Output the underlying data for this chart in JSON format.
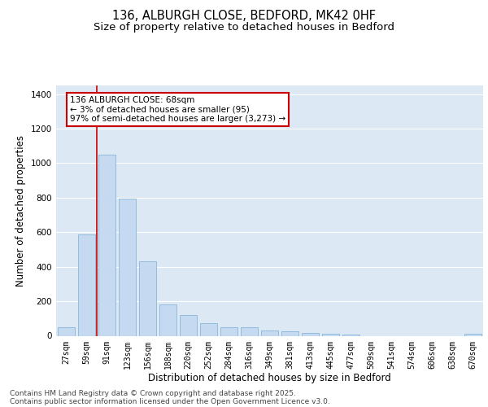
{
  "title_line1": "136, ALBURGH CLOSE, BEDFORD, MK42 0HF",
  "title_line2": "Size of property relative to detached houses in Bedford",
  "xlabel": "Distribution of detached houses by size in Bedford",
  "ylabel": "Number of detached properties",
  "categories": [
    "27sqm",
    "59sqm",
    "91sqm",
    "123sqm",
    "156sqm",
    "188sqm",
    "220sqm",
    "252sqm",
    "284sqm",
    "316sqm",
    "349sqm",
    "381sqm",
    "413sqm",
    "445sqm",
    "477sqm",
    "509sqm",
    "541sqm",
    "574sqm",
    "606sqm",
    "638sqm",
    "670sqm"
  ],
  "values": [
    50,
    585,
    1050,
    793,
    430,
    180,
    120,
    73,
    50,
    50,
    30,
    25,
    18,
    10,
    5,
    0,
    0,
    0,
    0,
    0,
    12
  ],
  "bar_color": "#c5d9f0",
  "bar_edge_color": "#7aadd4",
  "vline_x": 1.5,
  "vline_color": "#cc0000",
  "annotation_line1": "136 ALBURGH CLOSE: 68sqm",
  "annotation_line2": "← 3% of detached houses are smaller (95)",
  "annotation_line3": "97% of semi-detached houses are larger (3,273) →",
  "annotation_box_color": "#cc0000",
  "ylim": [
    0,
    1450
  ],
  "yticks": [
    0,
    200,
    400,
    600,
    800,
    1000,
    1200,
    1400
  ],
  "bg_color": "#dce9f5",
  "footer_line1": "Contains HM Land Registry data © Crown copyright and database right 2025.",
  "footer_line2": "Contains public sector information licensed under the Open Government Licence v3.0.",
  "title_fontsize": 10.5,
  "subtitle_fontsize": 9.5,
  "axis_label_fontsize": 8.5,
  "tick_fontsize": 7,
  "footer_fontsize": 6.5,
  "annotation_fontsize": 7.5
}
